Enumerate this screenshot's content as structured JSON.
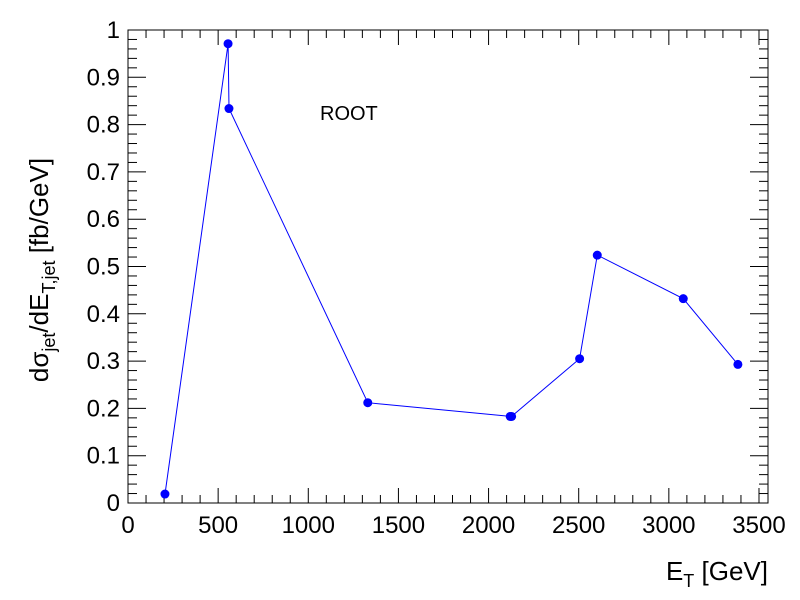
{
  "chart_data": {
    "type": "line",
    "title": "",
    "annotation": "ROOT",
    "xlabel": {
      "main": "E",
      "sub": "T",
      "rest": " [GeV]"
    },
    "ylabel": {
      "p1": "dσ",
      "s1": "jet",
      "p2": "/dE",
      "s2": "T,jet",
      "p3": " [fb/GeV]"
    },
    "xlim": [
      0,
      3550
    ],
    "ylim": [
      0,
      1
    ],
    "xticks": [
      0,
      500,
      1000,
      1500,
      2000,
      2500,
      3000,
      3500
    ],
    "xtick_labels": [
      "0",
      "500",
      "1000",
      "1500",
      "2000",
      "2500",
      "3000",
      "3500"
    ],
    "yticks": [
      0,
      0.1,
      0.2,
      0.3,
      0.4,
      0.5,
      0.6,
      0.7,
      0.8,
      0.9,
      1
    ],
    "ytick_labels": [
      "0",
      "0.1",
      "0.2",
      "0.3",
      "0.4",
      "0.5",
      "0.6",
      "0.7",
      "0.8",
      "0.9",
      "1"
    ],
    "grid": false,
    "legend": "none",
    "series": [
      {
        "color": "#0000ff",
        "marker": "circle",
        "x": [
          205,
          555,
          560,
          1330,
          2120,
          2128,
          2505,
          2603,
          3080,
          3383
        ],
        "y": [
          0.019,
          0.971,
          0.834,
          0.212,
          0.183,
          0.183,
          0.305,
          0.524,
          0.432,
          0.293
        ]
      }
    ]
  }
}
